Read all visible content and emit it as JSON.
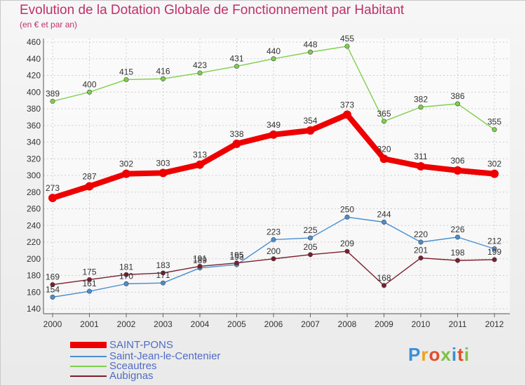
{
  "title": "Evolution de la Dotation Globale de Fonctionnement par Habitant",
  "subtitle": "(en € et par an)",
  "logo": "Proxiti",
  "chart_data": {
    "type": "line",
    "x": [
      "2000",
      "2001",
      "2002",
      "2003",
      "2004",
      "2005",
      "2006",
      "2007",
      "2008",
      "2009",
      "2010",
      "2011",
      "2012"
    ],
    "ylim": [
      140,
      460
    ],
    "yticks": [
      140,
      160,
      180,
      200,
      220,
      240,
      260,
      280,
      300,
      320,
      340,
      360,
      380,
      400,
      420,
      440,
      460
    ],
    "grid": true,
    "legend_position": "bottom-left",
    "series": [
      {
        "name": "SAINT-PONS",
        "color": "#ee0000",
        "values": [
          273,
          287,
          302,
          303,
          313,
          338,
          349,
          354,
          373,
          320,
          311,
          306,
          302
        ]
      },
      {
        "name": "Saint-Jean-le-Centenier",
        "color": "#4a8fd0",
        "values": [
          154,
          161,
          170,
          171,
          189,
          193,
          223,
          225,
          250,
          244,
          220,
          226,
          212
        ]
      },
      {
        "name": "Sceautres",
        "color": "#7ed04a",
        "values": [
          389,
          400,
          415,
          416,
          423,
          431,
          440,
          448,
          455,
          365,
          382,
          386,
          355
        ]
      },
      {
        "name": "Aubignas",
        "color": "#7b1e2e",
        "values": [
          169,
          175,
          181,
          183,
          191,
          195,
          200,
          205,
          209,
          168,
          201,
          198,
          199
        ]
      }
    ]
  }
}
